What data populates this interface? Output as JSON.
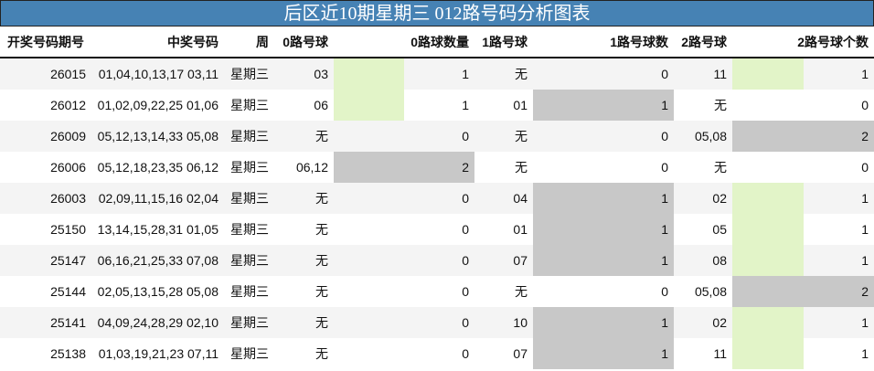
{
  "title": "后区近10期星期三 012路号码分析图表",
  "colors": {
    "title_bg": "#4682b4",
    "bar_max": "#c8c8c8",
    "bar_partial": "#e2f4c8",
    "row_stripe": "#f4f4f4"
  },
  "headers": [
    "开奖号码期号",
    "中奖号码",
    "周",
    "0路号球",
    "0路球数量",
    "1路号球",
    "1路号球数",
    "2路号球",
    "2路号球个数"
  ],
  "rows": [
    [
      "26015",
      "01,04,10,13,17 03,11",
      "星期三",
      "03",
      "1",
      "无",
      "0",
      "11",
      "1"
    ],
    [
      "26012",
      "01,02,09,22,25 01,06",
      "星期三",
      "06",
      "1",
      "01",
      "1",
      "无",
      "0"
    ],
    [
      "26009",
      "05,12,13,14,33 05,08",
      "星期三",
      "无",
      "0",
      "无",
      "0",
      "05,08",
      "2"
    ],
    [
      "26006",
      "05,12,18,23,35 06,12",
      "星期三",
      "06,12",
      "2",
      "无",
      "0",
      "无",
      "0"
    ],
    [
      "26003",
      "02,09,11,15,16 02,04",
      "星期三",
      "无",
      "0",
      "04",
      "1",
      "02",
      "1"
    ],
    [
      "25150",
      "13,14,15,28,31 01,05",
      "星期三",
      "无",
      "0",
      "01",
      "1",
      "05",
      "1"
    ],
    [
      "25147",
      "06,16,21,25,33 07,08",
      "星期三",
      "无",
      "0",
      "07",
      "1",
      "08",
      "1"
    ],
    [
      "25144",
      "02,05,13,15,28 05,08",
      "星期三",
      "无",
      "0",
      "无",
      "0",
      "05,08",
      "2"
    ],
    [
      "25141",
      "04,09,24,28,29 02,10",
      "星期三",
      "无",
      "0",
      "10",
      "1",
      "02",
      "1"
    ],
    [
      "25138",
      "01,03,19,21,23 07,11",
      "星期三",
      "无",
      "0",
      "07",
      "1",
      "11",
      "1"
    ]
  ]
}
